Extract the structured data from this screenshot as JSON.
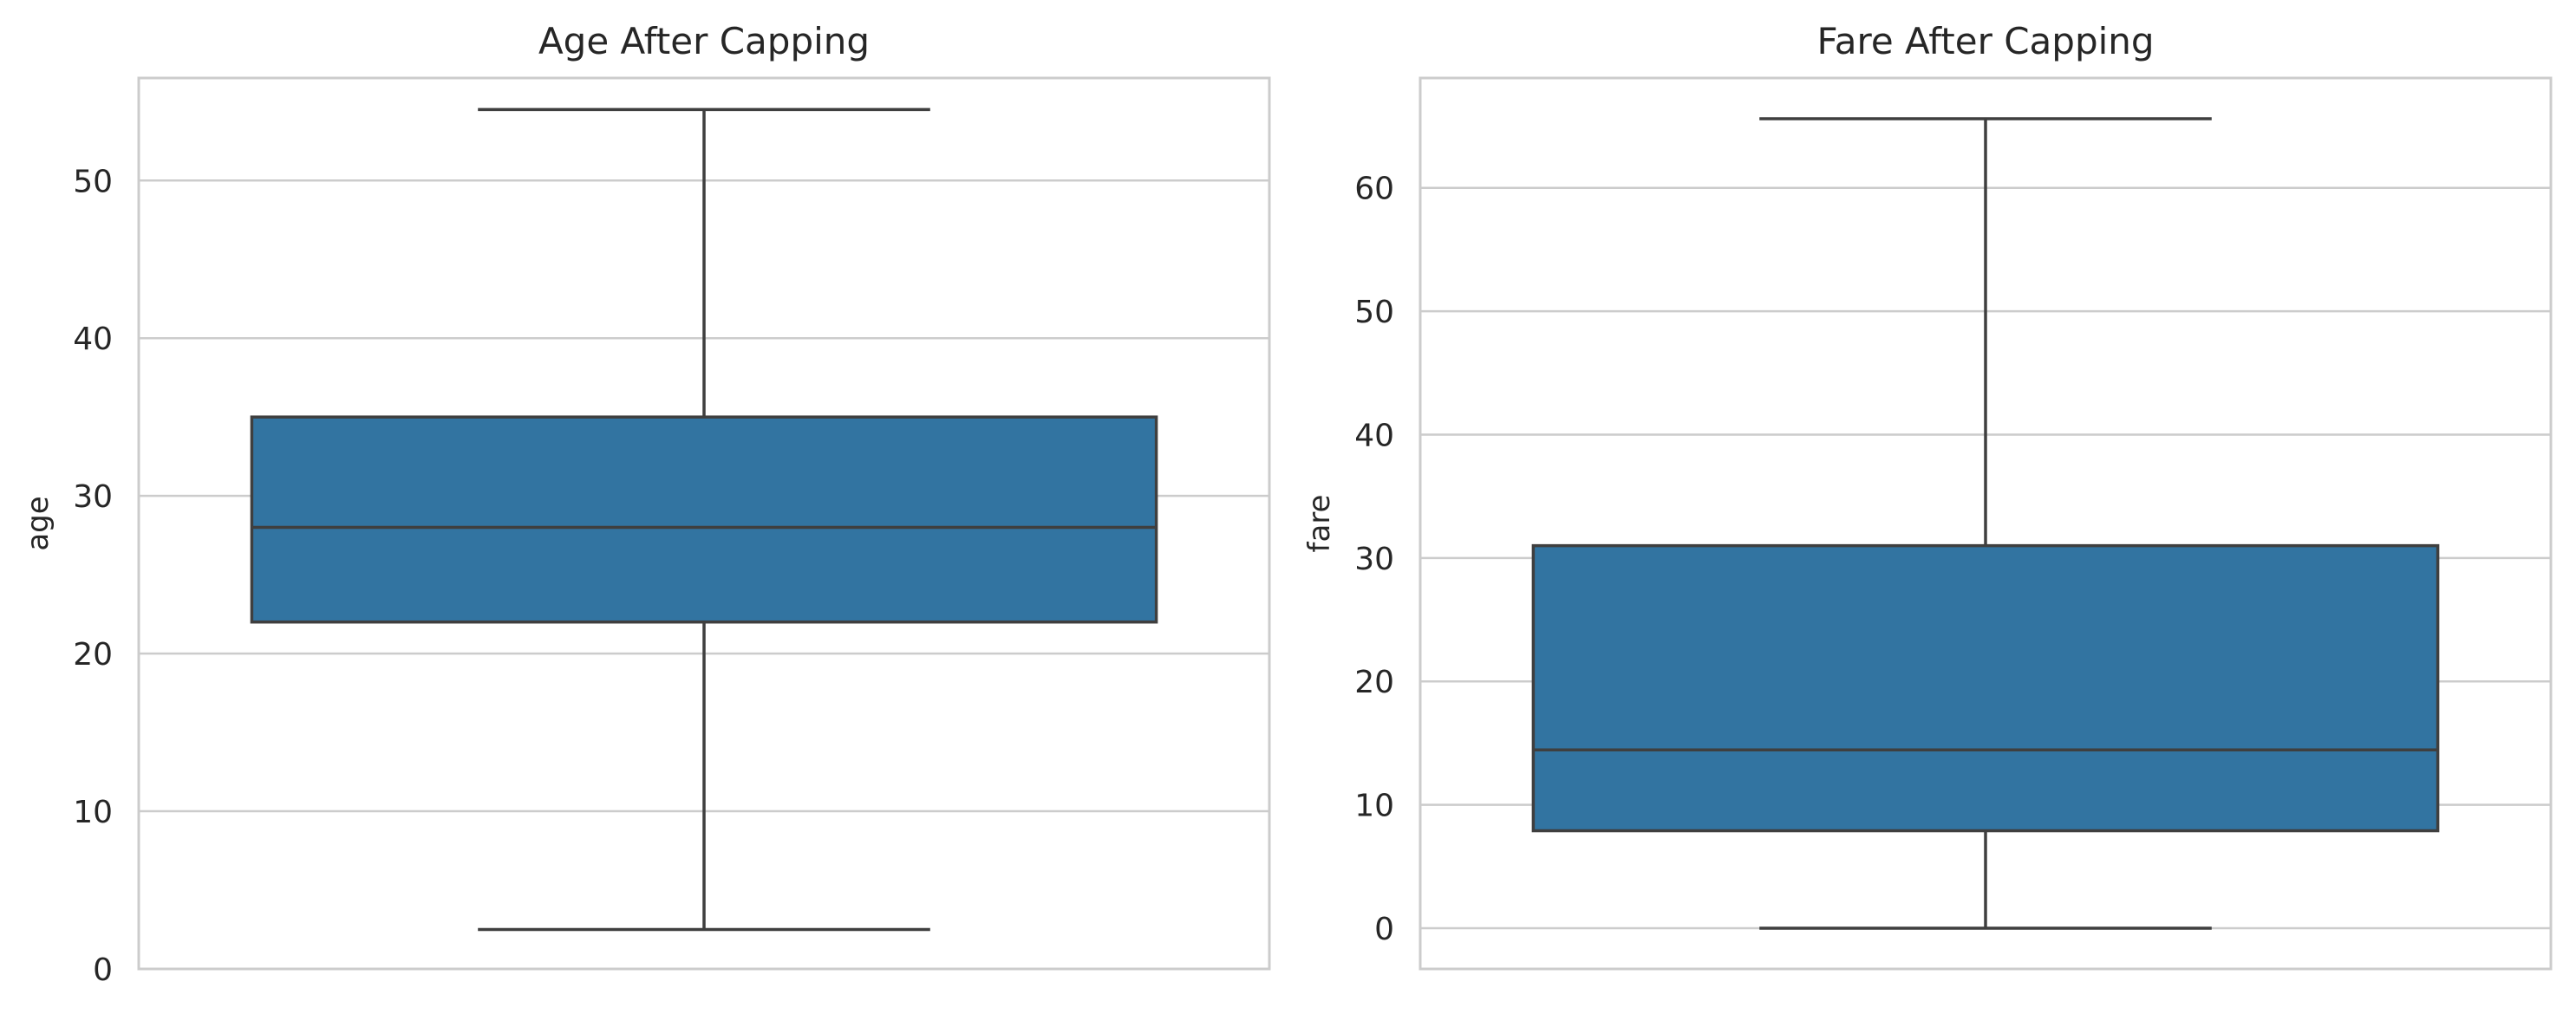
{
  "chart_data": [
    {
      "type": "box",
      "title": "Age After Capping",
      "ylabel": "age",
      "ylim": [
        0,
        56.5
      ],
      "yticks": [
        0,
        10,
        20,
        30,
        40,
        50
      ],
      "grid": true,
      "color": "#3274a1",
      "box": {
        "whisker_low": 2.5,
        "q1": 22,
        "median": 28,
        "q3": 35,
        "whisker_high": 54.5
      }
    },
    {
      "type": "box",
      "title": "Fare After Capping",
      "ylabel": "fare",
      "ylim": [
        -3.3,
        68.9
      ],
      "yticks": [
        0,
        10,
        20,
        30,
        40,
        50,
        60
      ],
      "grid": true,
      "color": "#3274a1",
      "box": {
        "whisker_low": 0,
        "q1": 7.9,
        "median": 14.45,
        "q3": 31,
        "whisker_high": 65.6
      }
    }
  ]
}
